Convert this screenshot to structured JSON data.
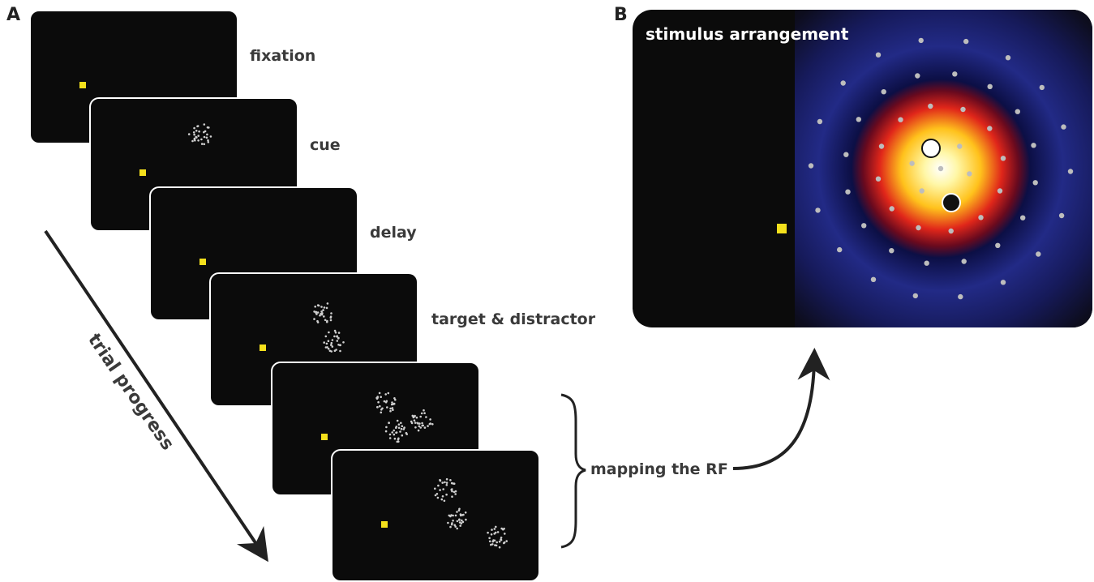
{
  "panel_a": {
    "letter": "A",
    "stages": [
      {
        "label": "fixation"
      },
      {
        "label": "cue"
      },
      {
        "label": "delay"
      },
      {
        "label": "target & distractor"
      },
      {
        "label": ""
      },
      {
        "label": ""
      }
    ],
    "trial_progress_label": "trial progress",
    "mapping_label": "mapping the RF"
  },
  "panel_b": {
    "letter": "B",
    "title": "stimulus arrangement"
  },
  "colors": {
    "screen_bg": "#0b0b0b",
    "fixation": "#f4e01c",
    "dots": "#cfcfcf",
    "text": "#3a3a3a"
  }
}
